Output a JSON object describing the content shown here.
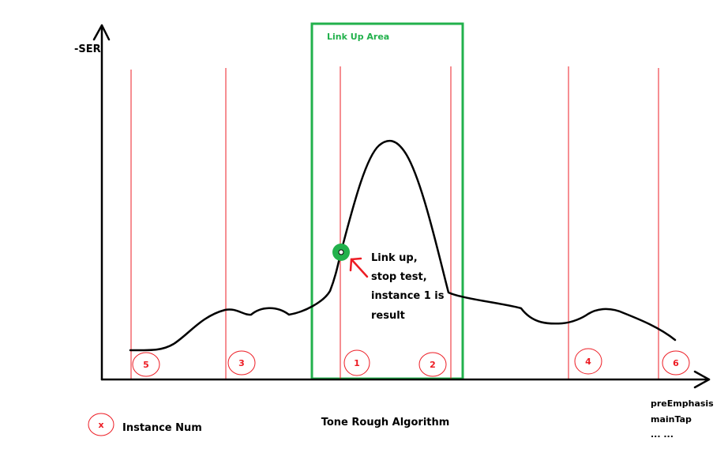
{
  "axes": {
    "y_label": "-SER",
    "x_labels": [
      "preEmphasis",
      "mainTap",
      "... ..."
    ],
    "axis_color": "#000000"
  },
  "link_up_area": {
    "label": "Link Up Area",
    "color": "#22b14c"
  },
  "instances": [
    {
      "number": "5"
    },
    {
      "number": "3"
    },
    {
      "number": "1"
    },
    {
      "number": "2"
    },
    {
      "number": "4"
    },
    {
      "number": "6"
    }
  ],
  "instance_line_color": "#ed1c24",
  "annotation": {
    "lines": [
      "Link up,",
      "stop test,",
      "instance 1 is",
      "result"
    ],
    "arrow_color": "#ed1c24",
    "marker_color": "#22b14c"
  },
  "legend": {
    "symbol": "x",
    "label": "Instance Num"
  },
  "caption": "Tone Rough Algorithm"
}
